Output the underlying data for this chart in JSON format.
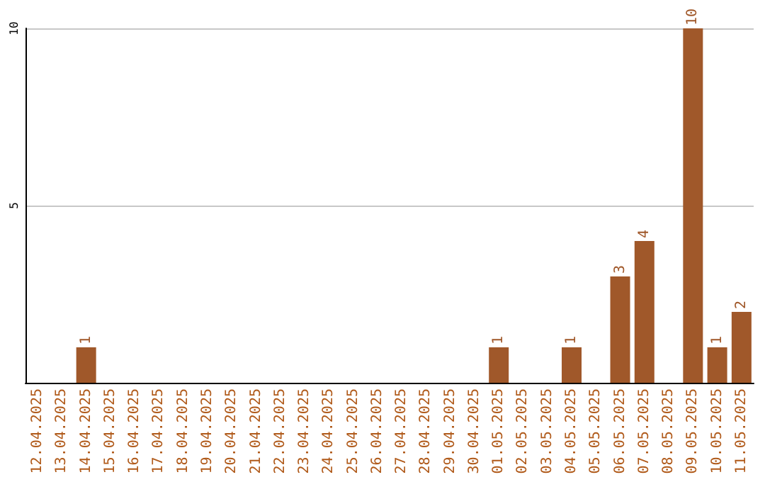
{
  "chart_data": {
    "type": "bar",
    "categories": [
      "12.04.2025",
      "13.04.2025",
      "14.04.2025",
      "15.04.2025",
      "16.04.2025",
      "17.04.2025",
      "18.04.2025",
      "19.04.2025",
      "20.04.2025",
      "21.04.2025",
      "22.04.2025",
      "23.04.2025",
      "24.04.2025",
      "25.04.2025",
      "26.04.2025",
      "27.04.2025",
      "28.04.2025",
      "29.04.2025",
      "30.04.2025",
      "01.05.2025",
      "02.05.2025",
      "03.05.2025",
      "04.05.2025",
      "05.05.2025",
      "06.05.2025",
      "07.05.2025",
      "08.05.2025",
      "09.05.2025",
      "10.05.2025",
      "11.05.2025"
    ],
    "values": [
      null,
      null,
      1,
      null,
      null,
      null,
      null,
      null,
      null,
      null,
      null,
      null,
      null,
      null,
      null,
      null,
      null,
      null,
      null,
      1,
      null,
      null,
      1,
      null,
      3,
      4,
      null,
      10,
      1,
      2
    ],
    "color": "#a0582a",
    "ylim": [
      0,
      10
    ],
    "yticks": [
      5,
      10
    ],
    "grid": "y",
    "data_labels": true
  }
}
